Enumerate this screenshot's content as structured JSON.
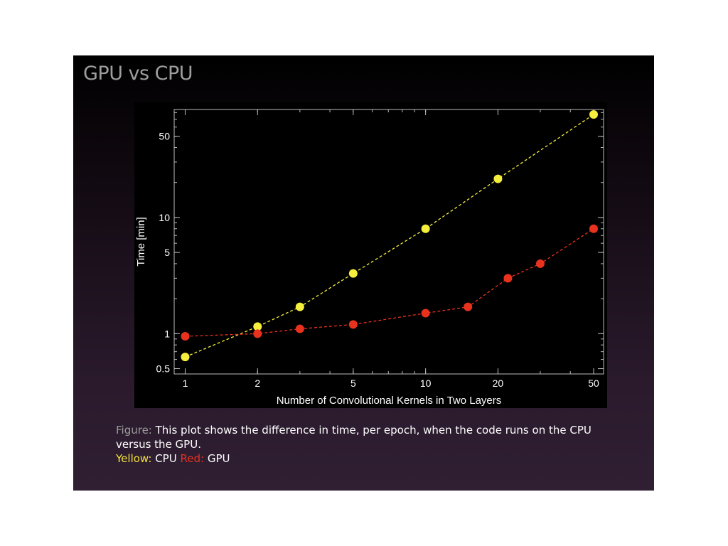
{
  "slide": {
    "title": "GPU vs CPU"
  },
  "caption": {
    "figure_key": "Figure:",
    "figure_text": "This plot shows the difference in time, per epoch, when the code runs on the CPU versus the GPU.",
    "yellow_key": "Yellow:",
    "yellow_value": "CPU",
    "red_key": "Red:",
    "red_value": "GPU"
  },
  "colors": {
    "cpu": "#f6ee3c",
    "gpu": "#e8321e",
    "plot_background": "#000000",
    "frame": "#bbbbbb"
  },
  "chart_data": {
    "type": "line",
    "xlabel": "Number of Convolutional Kernels in Two Layers",
    "ylabel": "Time [min]",
    "x_scale": "log",
    "y_scale": "log",
    "xlim": [
      0.9,
      55
    ],
    "ylim": [
      0.45,
      85
    ],
    "x_ticks": [
      1,
      2,
      5,
      10,
      20,
      50
    ],
    "y_ticks": [
      0.5,
      1,
      5,
      10,
      50
    ],
    "grid": false,
    "series": [
      {
        "name": "CPU",
        "color": "#f6ee3c",
        "x": [
          1,
          2,
          3,
          5,
          10,
          20,
          50
        ],
        "y": [
          0.63,
          1.15,
          1.7,
          3.3,
          8.0,
          21.5,
          77
        ]
      },
      {
        "name": "GPU",
        "color": "#e8321e",
        "x": [
          1,
          2,
          3,
          5,
          10,
          15,
          22,
          30,
          50
        ],
        "y": [
          0.95,
          1.0,
          1.1,
          1.2,
          1.5,
          1.7,
          3.0,
          4.0,
          8.0
        ]
      }
    ]
  }
}
